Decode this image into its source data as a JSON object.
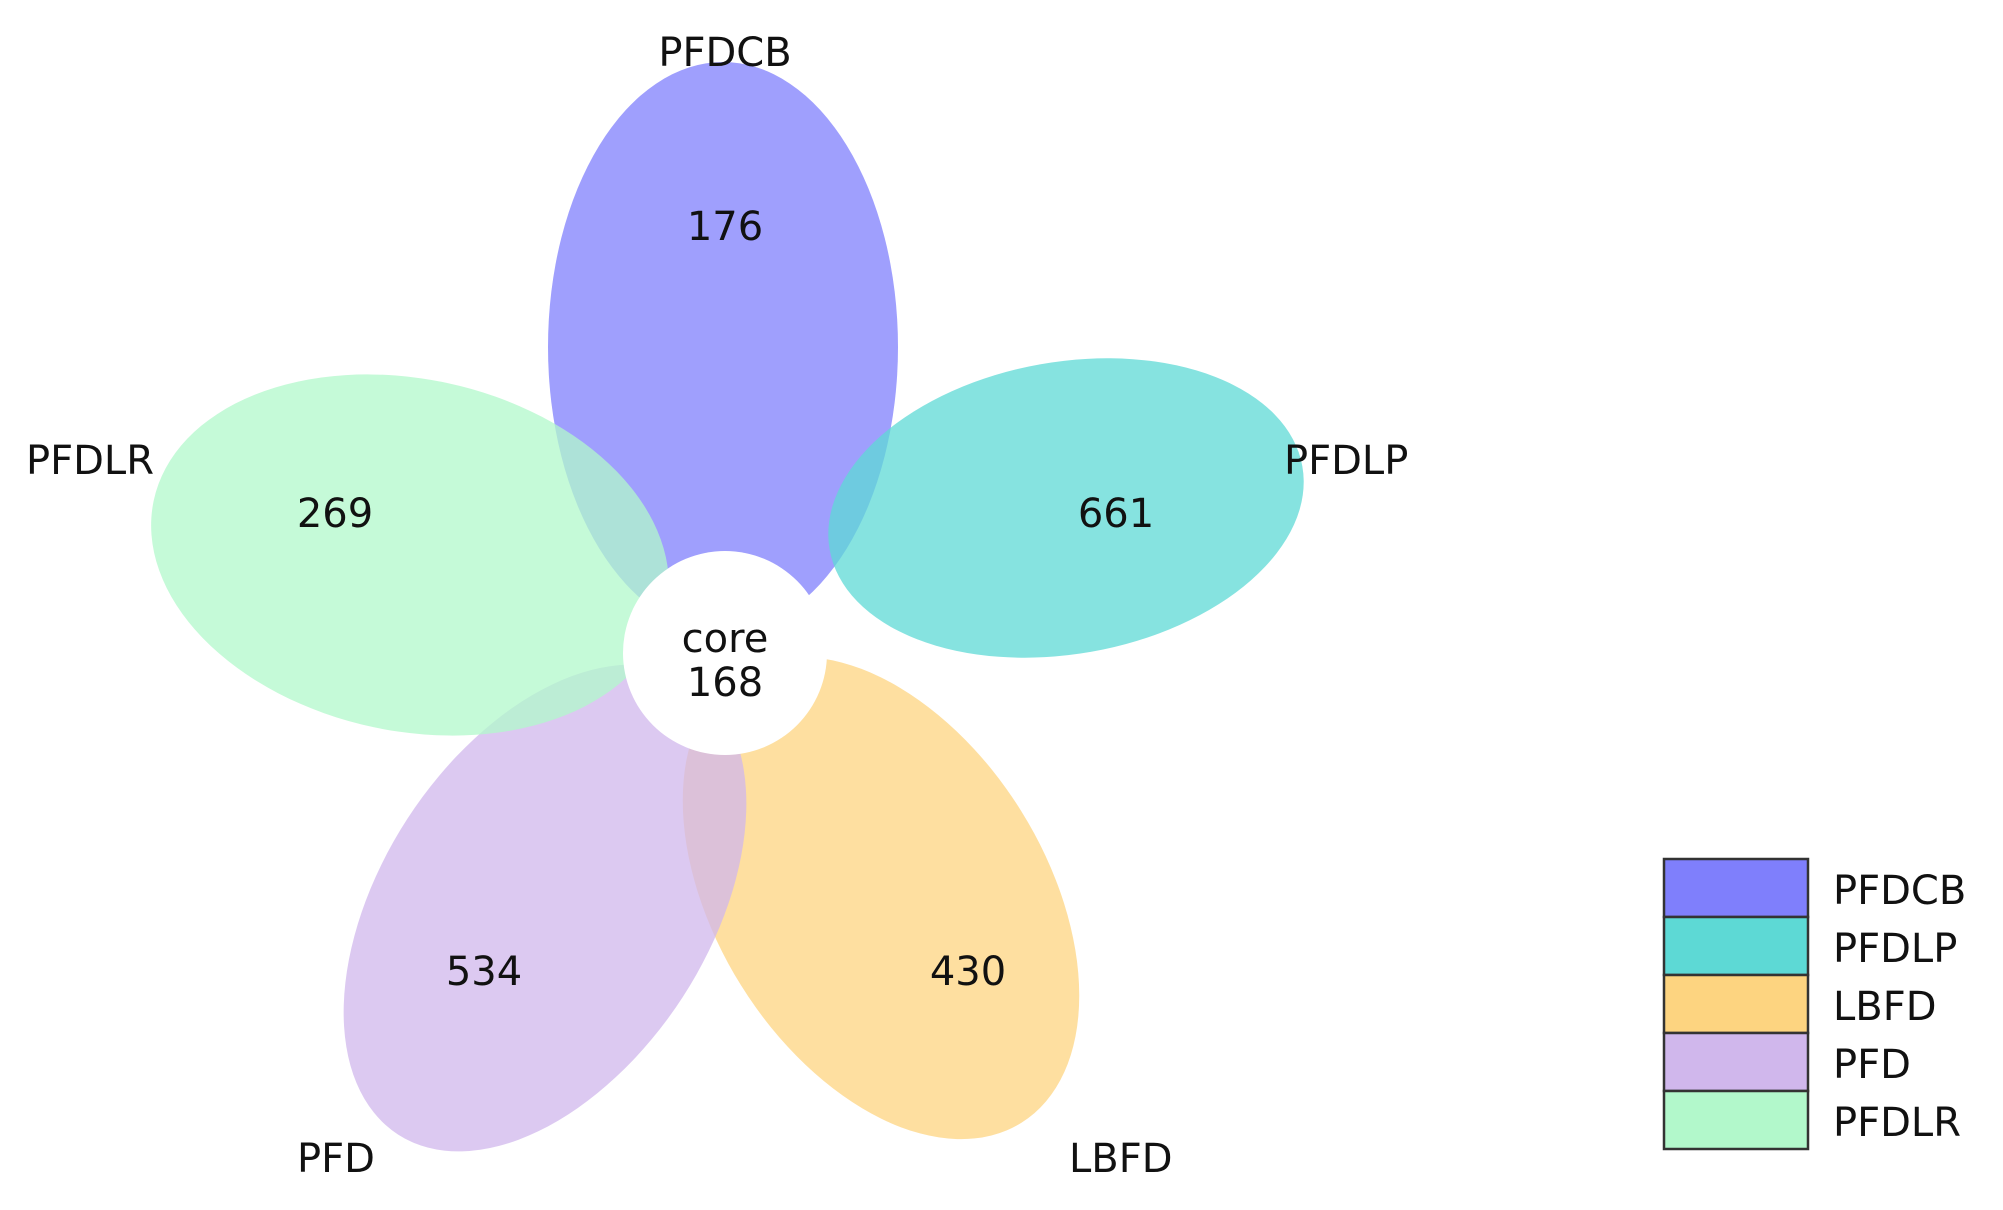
{
  "diagram": {
    "type": "flower-venn",
    "core": {
      "label": "core",
      "count": "168"
    },
    "petals": [
      {
        "name": "PFDCB",
        "count": "176",
        "color": "#7f7ffc"
      },
      {
        "name": "PFDLP",
        "count": "661",
        "color": "#5dd9d5"
      },
      {
        "name": "LBFD",
        "count": "430",
        "color": "#fdd480"
      },
      {
        "name": "PFD",
        "count": "534",
        "color": "#d0b7ec"
      },
      {
        "name": "PFDLR",
        "count": "269",
        "color": "#b2f8cb"
      }
    ],
    "legend": [
      {
        "label": "PFDCB",
        "color": "#7f7ffc"
      },
      {
        "label": "PFDLP",
        "color": "#5dd9d5"
      },
      {
        "label": "LBFD",
        "color": "#fdd480"
      },
      {
        "label": "PFD",
        "color": "#d0b7ec"
      },
      {
        "label": "PFDLR",
        "color": "#b2f8cb"
      }
    ]
  }
}
